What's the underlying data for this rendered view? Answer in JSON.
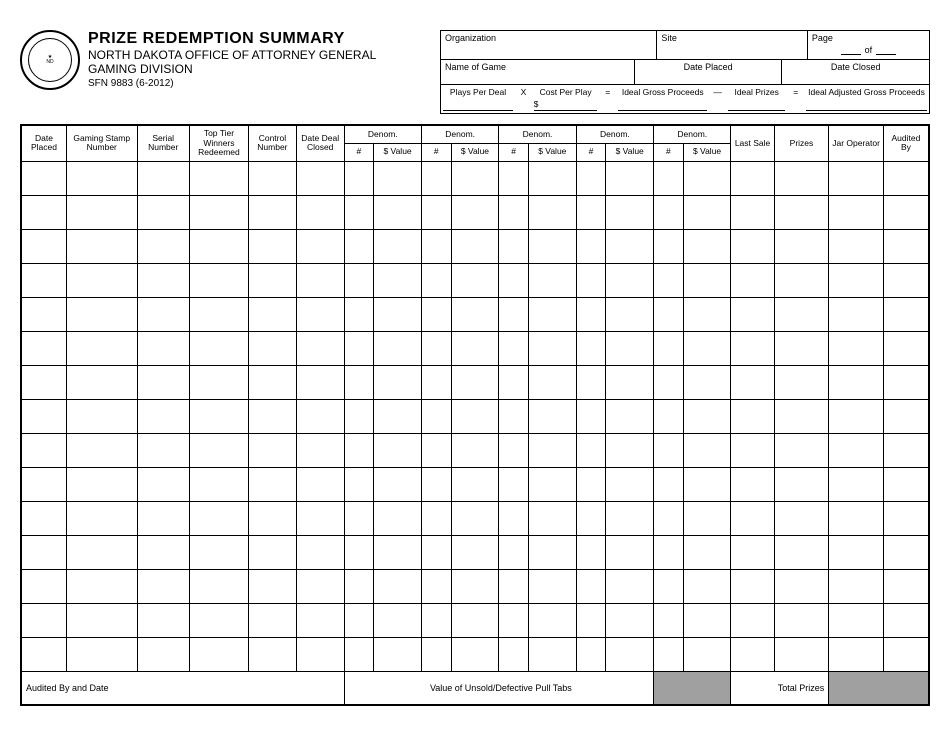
{
  "header": {
    "title": "PRIZE REDEMPTION SUMMARY",
    "subtitle1": "NORTH DAKOTA OFFICE OF ATTORNEY GENERAL",
    "subtitle2": "GAMING DIVISION",
    "form_no": "SFN 9883 (6-2012)",
    "seal_outer": "GREAT SEAL",
    "seal_state": "STATE OF NORTH DAKOTA"
  },
  "info": {
    "organization": "Organization",
    "site": "Site",
    "page": "Page",
    "of": "of",
    "name_of_game": "Name of Game",
    "date_placed": "Date Placed",
    "date_closed": "Date Closed",
    "formula": {
      "plays_per_deal": "Plays Per Deal",
      "x": "X",
      "cost_per_play": "Cost Per Play",
      "eq1": "=",
      "ideal_gross": "Ideal Gross Proceeds",
      "minus": "—",
      "ideal_prizes": "Ideal Prizes",
      "eq2": "=",
      "ideal_adj": "Ideal Adjusted Gross Proceeds",
      "dollar": "$"
    }
  },
  "columns": {
    "date_placed": "Date Placed",
    "gaming_stamp": "Gaming Stamp Number",
    "serial": "Serial Number",
    "top_tier": "Top Tier Winners Redeemed",
    "control": "Control Number",
    "date_deal_closed": "Date Deal Closed",
    "denom": "Denom.",
    "hash": "#",
    "value": "$ Value",
    "last_sale": "Last Sale",
    "prizes": "Prizes",
    "jar_operator": "Jar Operator",
    "audited_by": "Audited By"
  },
  "footer": {
    "audited_by_date": "Audited By and Date",
    "value_unsold": "Value of Unsold/Defective Pull Tabs",
    "total_prizes": "Total Prizes"
  },
  "layout": {
    "data_rows": 15,
    "denom_groups": 5,
    "colors": {
      "border": "#000000",
      "bg": "#ffffff",
      "shade": "#a0a0a0"
    }
  }
}
